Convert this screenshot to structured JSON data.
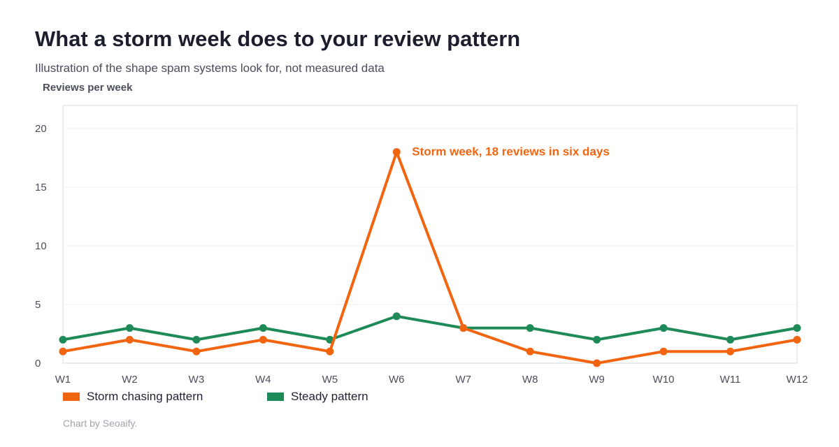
{
  "header": {
    "title": "What a storm week does to your review pattern",
    "subtitle": "Illustration of the shape spam systems look for, not measured data"
  },
  "footer": {
    "credit": "Chart by Seoaify."
  },
  "chart_data": {
    "type": "line",
    "title": "What a storm week does to your review pattern",
    "subtitle": "Illustration of the shape spam systems look for, not measured data",
    "xlabel": "",
    "ylabel": "Reviews per week",
    "categories": [
      "W1",
      "W2",
      "W3",
      "W4",
      "W5",
      "W6",
      "W7",
      "W8",
      "W9",
      "W10",
      "W11",
      "W12"
    ],
    "ylim": [
      0,
      20
    ],
    "yticks": [
      0,
      5,
      10,
      15,
      20
    ],
    "grid": true,
    "legend_position": "bottom-left",
    "series": [
      {
        "name": "Storm chasing pattern",
        "color": "#f26510",
        "values": [
          1,
          2,
          1,
          2,
          1,
          18,
          3,
          1,
          0,
          1,
          1,
          2
        ]
      },
      {
        "name": "Steady pattern",
        "color": "#1e8a58",
        "values": [
          2,
          3,
          2,
          3,
          2,
          4,
          3,
          3,
          2,
          3,
          2,
          3
        ]
      }
    ],
    "annotations": [
      {
        "text": "Storm week, 18 reviews in six days",
        "x": "W6",
        "y": 18,
        "series": 0,
        "color": "#f26510"
      }
    ]
  }
}
